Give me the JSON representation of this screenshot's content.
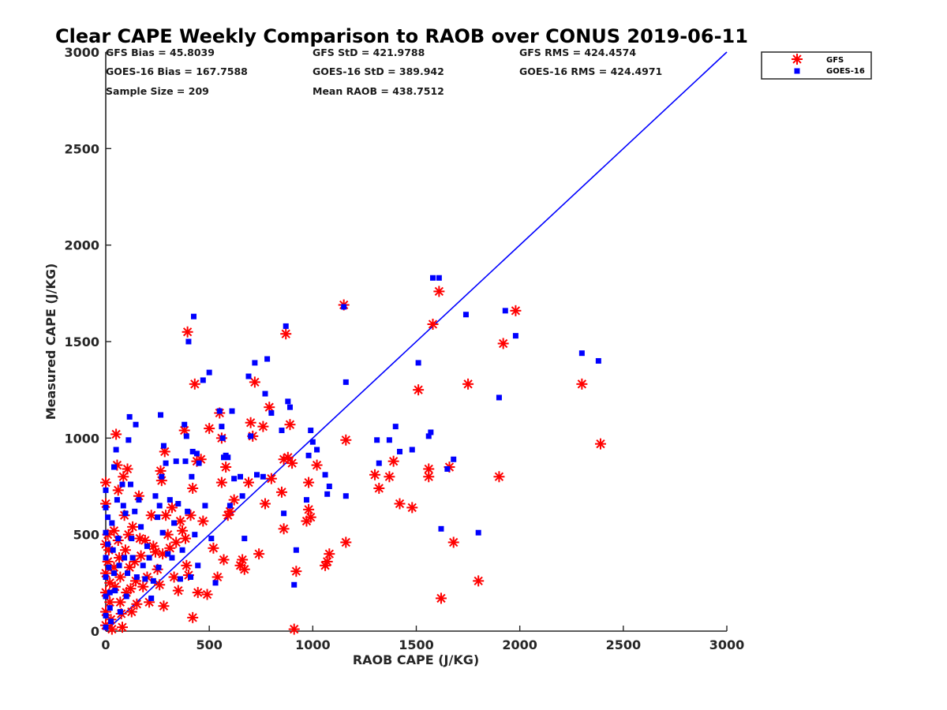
{
  "chart_data": {
    "type": "scatter",
    "title": "Clear CAPE Weekly Comparison to RAOB over CONUS 2019-06-11",
    "xlabel": "RAOB CAPE (J/KG)",
    "ylabel": "Measured CAPE (J/KG)",
    "xlim": [
      0,
      3000
    ],
    "ylim": [
      0,
      3000
    ],
    "xticks": [
      "0",
      "500",
      "1000",
      "1500",
      "2000",
      "2500",
      "3000"
    ],
    "yticks": [
      "0",
      "500",
      "1000",
      "1500",
      "2000",
      "2500",
      "3000"
    ],
    "grid": false,
    "legend_position": "top-right",
    "stats": {
      "gfs_bias": "GFS Bias = 45.8039",
      "goes_bias": "GOES-16 Bias = 167.7588",
      "sample_size": "Sample Size = 209",
      "gfs_std": "GFS StD = 421.9788",
      "goes_std": "GOES-16 StD = 389.942",
      "mean_raob": "Mean RAOB = 438.7512",
      "gfs_rms": "GFS RMS = 424.4574",
      "goes_rms": "GOES-16 RMS = 424.4971"
    },
    "reference_line": {
      "x": [
        0,
        3000
      ],
      "y": [
        0,
        3000
      ],
      "color": "#0000ff"
    },
    "series": [
      {
        "name": "GFS",
        "marker": "asterisk",
        "color": "#ff0000",
        "points": [
          [
            0,
            770
          ],
          [
            0,
            660
          ],
          [
            0,
            450
          ],
          [
            0,
            300
          ],
          [
            0,
            200
          ],
          [
            0,
            100
          ],
          [
            0,
            30
          ],
          [
            10,
            500
          ],
          [
            10,
            360
          ],
          [
            15,
            420
          ],
          [
            20,
            250
          ],
          [
            20,
            150
          ],
          [
            25,
            60
          ],
          [
            30,
            10
          ],
          [
            40,
            520
          ],
          [
            40,
            330
          ],
          [
            45,
            230
          ],
          [
            50,
            1020
          ],
          [
            55,
            860
          ],
          [
            60,
            730
          ],
          [
            60,
            470
          ],
          [
            65,
            380
          ],
          [
            70,
            280
          ],
          [
            70,
            150
          ],
          [
            75,
            90
          ],
          [
            80,
            20
          ],
          [
            85,
            800
          ],
          [
            90,
            600
          ],
          [
            95,
            420
          ],
          [
            100,
            200
          ],
          [
            105,
            840
          ],
          [
            110,
            500
          ],
          [
            115,
            330
          ],
          [
            120,
            220
          ],
          [
            125,
            100
          ],
          [
            130,
            540
          ],
          [
            140,
            360
          ],
          [
            145,
            260
          ],
          [
            150,
            140
          ],
          [
            160,
            700
          ],
          [
            165,
            480
          ],
          [
            170,
            390
          ],
          [
            180,
            230
          ],
          [
            190,
            470
          ],
          [
            200,
            280
          ],
          [
            210,
            150
          ],
          [
            220,
            600
          ],
          [
            230,
            440
          ],
          [
            240,
            410
          ],
          [
            250,
            320
          ],
          [
            260,
            240
          ],
          [
            265,
            830
          ],
          [
            270,
            780
          ],
          [
            275,
            400
          ],
          [
            280,
            130
          ],
          [
            285,
            930
          ],
          [
            290,
            600
          ],
          [
            300,
            500
          ],
          [
            310,
            430
          ],
          [
            320,
            640
          ],
          [
            330,
            280
          ],
          [
            340,
            460
          ],
          [
            350,
            210
          ],
          [
            360,
            570
          ],
          [
            370,
            520
          ],
          [
            380,
            1040
          ],
          [
            385,
            480
          ],
          [
            390,
            340
          ],
          [
            395,
            1550
          ],
          [
            400,
            290
          ],
          [
            410,
            600
          ],
          [
            420,
            740
          ],
          [
            420,
            70
          ],
          [
            430,
            1280
          ],
          [
            440,
            880
          ],
          [
            445,
            200
          ],
          [
            460,
            890
          ],
          [
            470,
            570
          ],
          [
            490,
            190
          ],
          [
            500,
            1050
          ],
          [
            520,
            430
          ],
          [
            540,
            280
          ],
          [
            550,
            1130
          ],
          [
            560,
            770
          ],
          [
            560,
            1000
          ],
          [
            570,
            370
          ],
          [
            580,
            850
          ],
          [
            590,
            600
          ],
          [
            600,
            620
          ],
          [
            620,
            680
          ],
          [
            650,
            340
          ],
          [
            660,
            370
          ],
          [
            670,
            320
          ],
          [
            690,
            770
          ],
          [
            700,
            1080
          ],
          [
            710,
            1010
          ],
          [
            720,
            1290
          ],
          [
            740,
            400
          ],
          [
            760,
            1060
          ],
          [
            770,
            660
          ],
          [
            790,
            1160
          ],
          [
            800,
            790
          ],
          [
            850,
            720
          ],
          [
            860,
            890
          ],
          [
            860,
            530
          ],
          [
            870,
            1540
          ],
          [
            880,
            900
          ],
          [
            890,
            1070
          ],
          [
            900,
            870
          ],
          [
            910,
            10
          ],
          [
            920,
            310
          ],
          [
            970,
            570
          ],
          [
            980,
            770
          ],
          [
            980,
            630
          ],
          [
            990,
            590
          ],
          [
            1020,
            860
          ],
          [
            1060,
            340
          ],
          [
            1070,
            360
          ],
          [
            1080,
            400
          ],
          [
            1150,
            1690
          ],
          [
            1160,
            990
          ],
          [
            1160,
            460
          ],
          [
            1300,
            810
          ],
          [
            1320,
            740
          ],
          [
            1370,
            800
          ],
          [
            1390,
            880
          ],
          [
            1420,
            660
          ],
          [
            1480,
            640
          ],
          [
            1510,
            1250
          ],
          [
            1560,
            840
          ],
          [
            1560,
            800
          ],
          [
            1580,
            1590
          ],
          [
            1610,
            1760
          ],
          [
            1620,
            170
          ],
          [
            1660,
            850
          ],
          [
            1680,
            460
          ],
          [
            1750,
            1280
          ],
          [
            1800,
            260
          ],
          [
            1900,
            800
          ],
          [
            1920,
            1490
          ],
          [
            1980,
            1660
          ],
          [
            2300,
            1280
          ],
          [
            2390,
            970
          ]
        ]
      },
      {
        "name": "GOES-16",
        "marker": "square",
        "color": "#0000ff",
        "points": [
          [
            0,
            730
          ],
          [
            0,
            640
          ],
          [
            0,
            510
          ],
          [
            0,
            380
          ],
          [
            0,
            280
          ],
          [
            0,
            180
          ],
          [
            0,
            80
          ],
          [
            0,
            20
          ],
          [
            10,
            590
          ],
          [
            10,
            450
          ],
          [
            15,
            330
          ],
          [
            20,
            200
          ],
          [
            20,
            120
          ],
          [
            25,
            50
          ],
          [
            30,
            560
          ],
          [
            35,
            420
          ],
          [
            40,
            850
          ],
          [
            40,
            300
          ],
          [
            45,
            210
          ],
          [
            50,
            940
          ],
          [
            55,
            680
          ],
          [
            60,
            480
          ],
          [
            65,
            340
          ],
          [
            70,
            100
          ],
          [
            80,
            760
          ],
          [
            85,
            650
          ],
          [
            90,
            380
          ],
          [
            95,
            610
          ],
          [
            100,
            180
          ],
          [
            105,
            300
          ],
          [
            110,
            990
          ],
          [
            115,
            1110
          ],
          [
            120,
            760
          ],
          [
            125,
            480
          ],
          [
            130,
            380
          ],
          [
            140,
            620
          ],
          [
            145,
            1070
          ],
          [
            150,
            280
          ],
          [
            160,
            680
          ],
          [
            170,
            540
          ],
          [
            180,
            340
          ],
          [
            190,
            270
          ],
          [
            200,
            440
          ],
          [
            210,
            380
          ],
          [
            220,
            170
          ],
          [
            230,
            260
          ],
          [
            240,
            700
          ],
          [
            250,
            590
          ],
          [
            255,
            330
          ],
          [
            260,
            650
          ],
          [
            265,
            1120
          ],
          [
            270,
            800
          ],
          [
            275,
            510
          ],
          [
            280,
            960
          ],
          [
            290,
            870
          ],
          [
            300,
            400
          ],
          [
            310,
            680
          ],
          [
            320,
            380
          ],
          [
            330,
            560
          ],
          [
            340,
            880
          ],
          [
            350,
            660
          ],
          [
            360,
            270
          ],
          [
            370,
            420
          ],
          [
            380,
            1070
          ],
          [
            385,
            880
          ],
          [
            390,
            1010
          ],
          [
            395,
            620
          ],
          [
            400,
            1500
          ],
          [
            410,
            280
          ],
          [
            415,
            800
          ],
          [
            420,
            930
          ],
          [
            425,
            1630
          ],
          [
            430,
            500
          ],
          [
            440,
            920
          ],
          [
            445,
            340
          ],
          [
            450,
            870
          ],
          [
            470,
            1300
          ],
          [
            480,
            650
          ],
          [
            500,
            1340
          ],
          [
            510,
            480
          ],
          [
            530,
            250
          ],
          [
            550,
            1140
          ],
          [
            560,
            1060
          ],
          [
            565,
            1000
          ],
          [
            570,
            900
          ],
          [
            580,
            910
          ],
          [
            590,
            900
          ],
          [
            600,
            650
          ],
          [
            610,
            1140
          ],
          [
            620,
            790
          ],
          [
            650,
            800
          ],
          [
            660,
            700
          ],
          [
            670,
            480
          ],
          [
            690,
            1320
          ],
          [
            700,
            1010
          ],
          [
            720,
            1390
          ],
          [
            730,
            810
          ],
          [
            760,
            800
          ],
          [
            770,
            1230
          ],
          [
            780,
            1410
          ],
          [
            800,
            1130
          ],
          [
            850,
            1040
          ],
          [
            860,
            610
          ],
          [
            870,
            1580
          ],
          [
            880,
            1190
          ],
          [
            890,
            1160
          ],
          [
            910,
            240
          ],
          [
            920,
            420
          ],
          [
            970,
            680
          ],
          [
            980,
            910
          ],
          [
            990,
            1040
          ],
          [
            1000,
            980
          ],
          [
            1020,
            940
          ],
          [
            1060,
            810
          ],
          [
            1070,
            710
          ],
          [
            1080,
            750
          ],
          [
            1150,
            1680
          ],
          [
            1160,
            1290
          ],
          [
            1160,
            700
          ],
          [
            1310,
            990
          ],
          [
            1320,
            870
          ],
          [
            1370,
            990
          ],
          [
            1400,
            1060
          ],
          [
            1420,
            930
          ],
          [
            1480,
            940
          ],
          [
            1510,
            1390
          ],
          [
            1560,
            1010
          ],
          [
            1570,
            1030
          ],
          [
            1580,
            1830
          ],
          [
            1610,
            1830
          ],
          [
            1620,
            530
          ],
          [
            1740,
            1640
          ],
          [
            1650,
            840
          ],
          [
            1680,
            890
          ],
          [
            1800,
            510
          ],
          [
            1900,
            1210
          ],
          [
            1930,
            1660
          ],
          [
            1980,
            1530
          ],
          [
            2300,
            1440
          ],
          [
            2380,
            1400
          ]
        ]
      }
    ]
  }
}
